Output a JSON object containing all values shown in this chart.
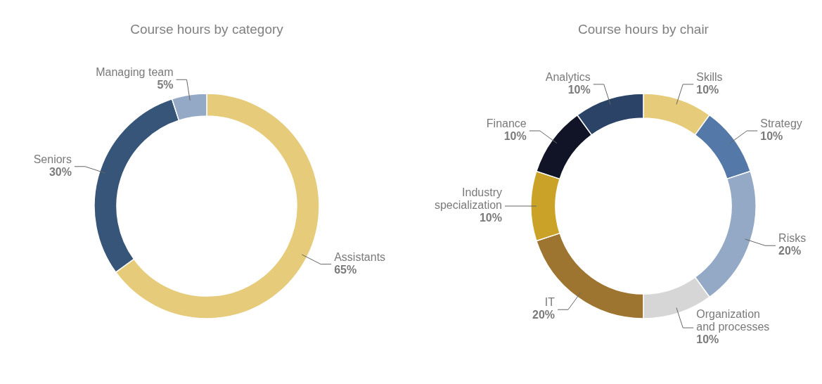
{
  "chart_data": [
    {
      "type": "donut",
      "title": "Course hours by category",
      "categories": [
        "Assistants",
        "Seniors",
        "Managing team"
      ],
      "values": [
        65,
        30,
        5
      ],
      "colors": [
        "#e5cb7a",
        "#375578",
        "#94a9c6"
      ],
      "value_labels": [
        "65%",
        "30%",
        "5%"
      ]
    },
    {
      "type": "donut",
      "title": "Course hours by chair",
      "categories": [
        "Skills",
        "Strategy",
        "Risks",
        "Organization and processes",
        "IT",
        "Industry specialization",
        "Finance",
        "Analytics"
      ],
      "values": [
        10,
        10,
        20,
        10,
        20,
        10,
        10,
        10
      ],
      "colors": [
        "#e5cb7a",
        "#5479a8",
        "#94a9c6",
        "#d6d6d6",
        "#9e7530",
        "#c9a227",
        "#111426",
        "#2a4366"
      ],
      "value_labels": [
        "10%",
        "10%",
        "20%",
        "10%",
        "20%",
        "10%",
        "10%",
        "10%"
      ]
    }
  ]
}
